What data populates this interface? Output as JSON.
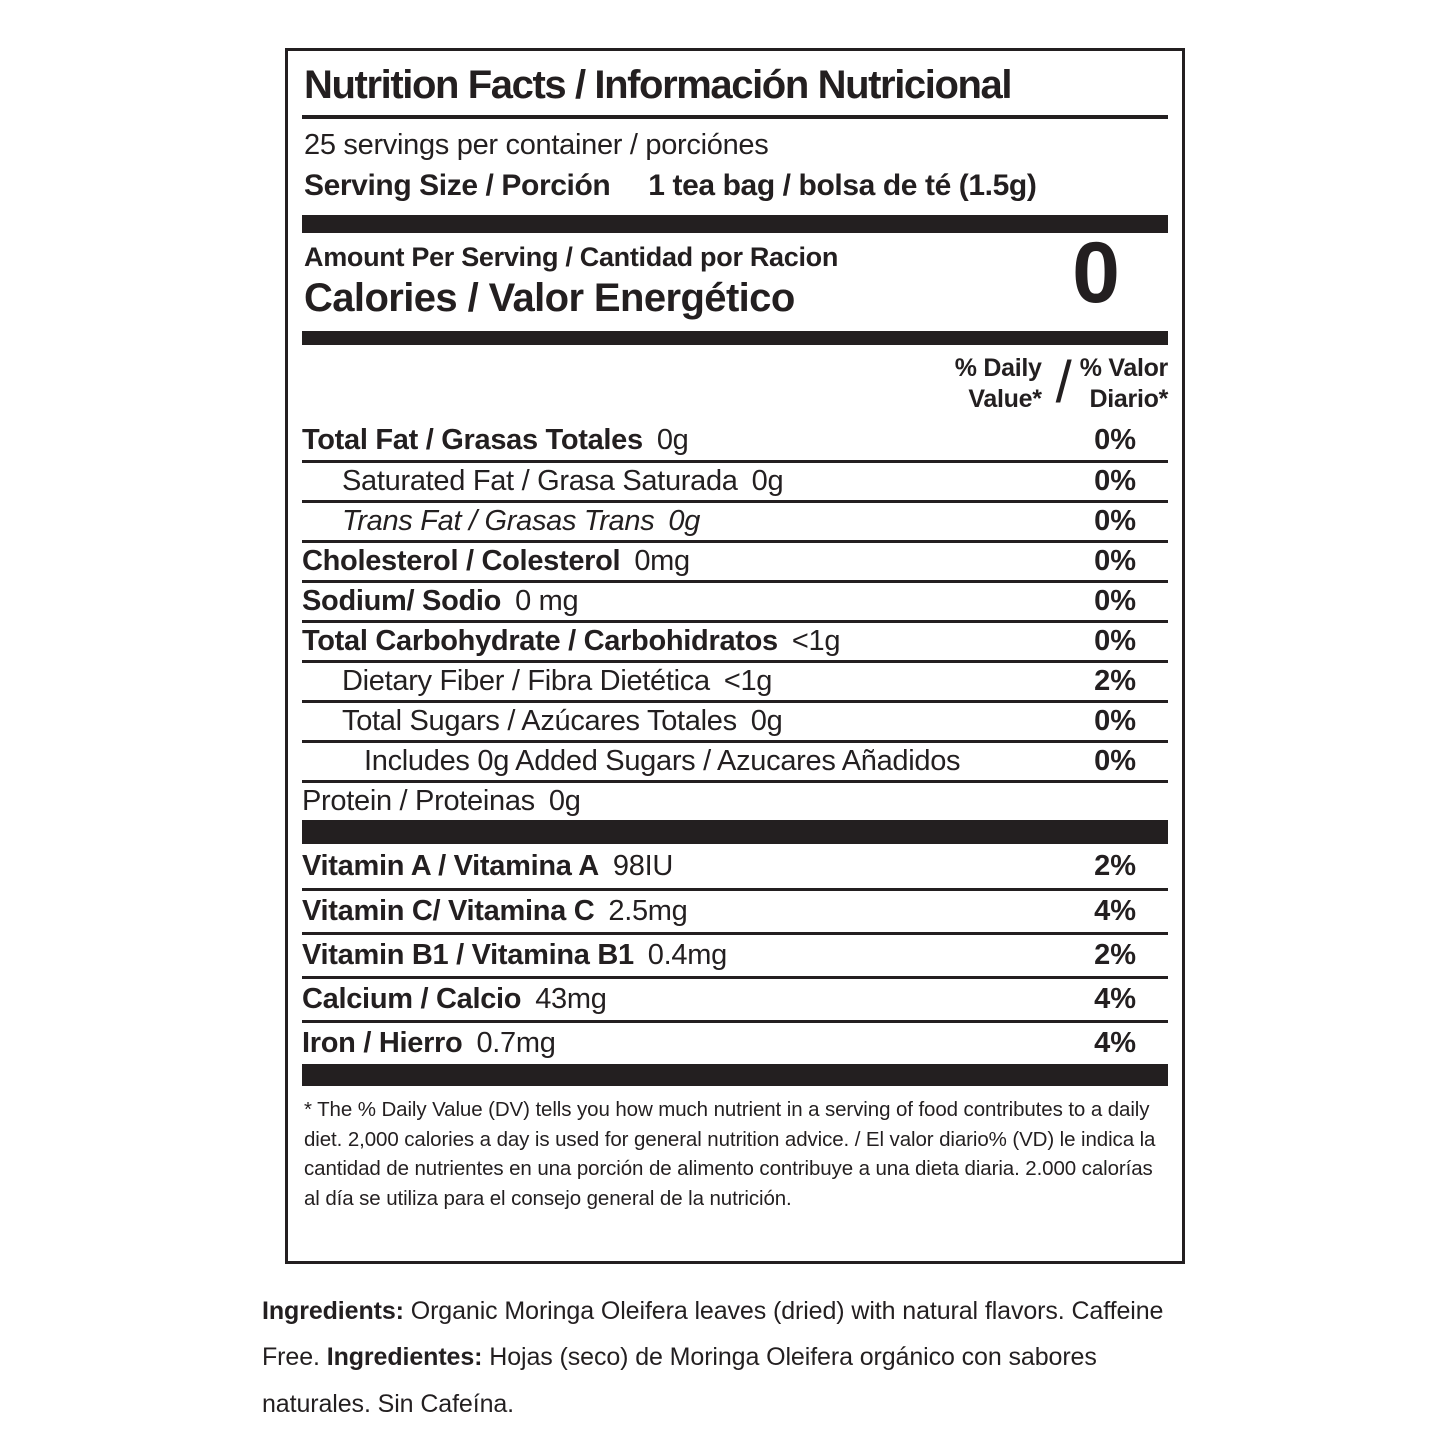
{
  "label": {
    "title": "Nutrition Facts / Información Nutricional",
    "servings_per_container": "25 servings per container / porciónes",
    "serving_size_label": "Serving Size / Porción",
    "serving_size_value": "1 tea bag / bolsa de té (1.5g)",
    "amount_per_serving": "Amount Per Serving / Cantidad por Racion",
    "calories_label": "Calories / Valor Energético",
    "calories_value": "0",
    "dv_header": {
      "en_line1": "% Daily",
      "en_line2": "Value*",
      "slash": "/",
      "es_line1": "% Valor",
      "es_line2": "Diario*"
    },
    "rows": [
      {
        "name": "Total Fat / Grasas Totales",
        "amount": "0g",
        "dv": "0%"
      },
      {
        "name": "Saturated Fat / Grasa Saturada",
        "amount": "0g",
        "dv": "0%"
      },
      {
        "name": "Trans Fat / Grasas Trans",
        "amount": "0g",
        "dv": "0%"
      },
      {
        "name": "Cholesterol / Colesterol",
        "amount": "0mg",
        "dv": "0%"
      },
      {
        "name": "Sodium/ Sodio",
        "amount": "0 mg",
        "dv": "0%"
      },
      {
        "name": "Total Carbohydrate / Carbohidratos",
        "amount": "<1g",
        "dv": "0%"
      },
      {
        "name": "Dietary Fiber / Fibra Dietética",
        "amount": "<1g",
        "dv": "2%"
      },
      {
        "name": "Total Sugars / Azúcares Totales",
        "amount": "0g",
        "dv": "0%"
      },
      {
        "name": "Includes 0g Added Sugars / Azucares Añadidos",
        "amount": "",
        "dv": "0%"
      },
      {
        "name": "Protein / Proteinas",
        "amount": "0g",
        "dv": ""
      }
    ],
    "vitamin_rows": [
      {
        "name": "Vitamin A / Vitamina A",
        "amount": "98IU",
        "dv": "2%"
      },
      {
        "name": "Vitamin C/ Vitamina C",
        "amount": "2.5mg",
        "dv": "4%"
      },
      {
        "name": "Vitamin B1 / Vitamina B1",
        "amount": "0.4mg",
        "dv": "2%"
      },
      {
        "name": "Calcium / Calcio",
        "amount": "43mg",
        "dv": "4%"
      },
      {
        "name": "Iron / Hierro",
        "amount": "0.7mg",
        "dv": "4%"
      }
    ],
    "footnote": "* The % Daily Value (DV) tells you how much nutrient in a serving of food contributes to a daily diet. 2,000 calories a day is used for general nutrition advice. / El valor diario% (VD) le indica la cantidad de nutrientes en una porción de alimento contribuye a una dieta diaria. 2.000 calorías al día se utiliza para el consejo general de la nutrición.",
    "ingredients": {
      "en_label": "Ingredients:",
      "en_text": "Organic Moringa Oleifera leaves (dried) with natural flavors. Caffeine Free.",
      "es_label": "Ingredientes:",
      "es_text": "Hojas (seco) de Moringa Oleifera orgánico con sabores naturales. Sin Cafeína."
    },
    "colors": {
      "text": "#231f20",
      "background": "#ffffff"
    }
  }
}
